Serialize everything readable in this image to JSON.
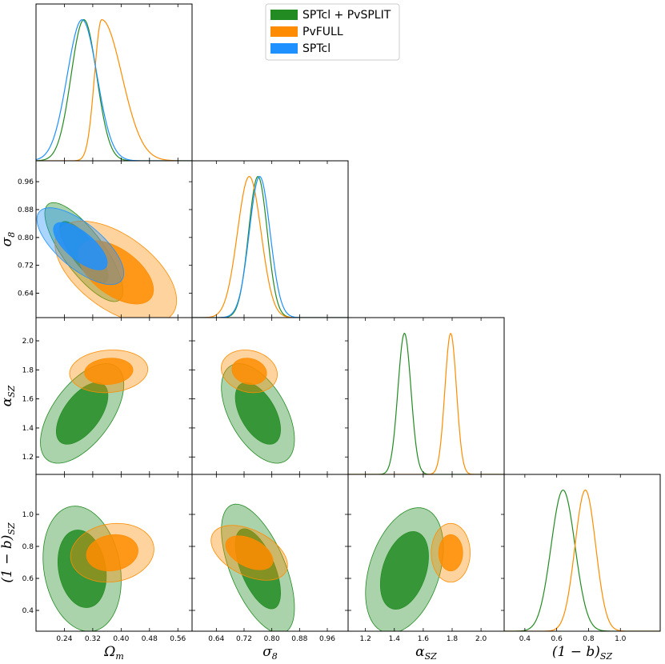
{
  "chart_data": {
    "type": "corner-plot",
    "title": "",
    "parameters": [
      {
        "key": "om",
        "name": "Ω",
        "sub": "m",
        "range": [
          0.16,
          0.6
        ],
        "ticks": [
          "0.24",
          "0.32",
          "0.40",
          "0.48",
          "0.56"
        ],
        "tickvals": [
          0.24,
          0.32,
          0.4,
          0.48,
          0.56
        ]
      },
      {
        "key": "s8",
        "name": "σ",
        "sub": "8",
        "range": [
          0.57,
          1.02
        ],
        "ticks": [
          "0.64",
          "0.72",
          "0.80",
          "0.88",
          "0.96"
        ],
        "tickvals": [
          0.64,
          0.72,
          0.8,
          0.88,
          0.96
        ]
      },
      {
        "key": "aSZ",
        "name": "α",
        "sub": "SZ",
        "range": [
          1.08,
          2.16
        ],
        "ticks": [
          "1.2",
          "1.4",
          "1.6",
          "1.8",
          "2.0"
        ],
        "tickvals": [
          1.2,
          1.4,
          1.6,
          1.8,
          2.0
        ]
      },
      {
        "key": "bSZ",
        "name": "(1 − b)",
        "sub": "SZ",
        "range": [
          0.27,
          1.25
        ],
        "ticks": [
          "0.4",
          "0.6",
          "0.8",
          "1.0"
        ],
        "tickvals": [
          0.4,
          0.6,
          0.8,
          1.0
        ]
      }
    ],
    "legend": {
      "position": "top-center",
      "entries": [
        {
          "label": "SPTcl + PvSPLIT",
          "color": "#228b22"
        },
        {
          "label": "PvFULL",
          "color": "#ff8c00"
        },
        {
          "label": "SPTcl",
          "color": "#1e90ff"
        }
      ]
    },
    "series": [
      {
        "name": "SPTcl + PvSPLIT",
        "color": "#228b22",
        "marginals": {
          "om": {
            "mean": 0.295,
            "sd": 0.036
          },
          "s8": {
            "mean": 0.76,
            "sd": 0.027
          },
          "aSZ": {
            "mean": 1.47,
            "sd": 0.045
          },
          "bSZ": {
            "mean": 0.64,
            "sd": 0.075
          }
        },
        "contours": [
          {
            "x": "om",
            "y": "s8",
            "mx": 0.295,
            "my": 0.758,
            "sx": 0.045,
            "sy": 0.058,
            "rho": -0.78
          },
          {
            "x": "om",
            "y": "aSZ",
            "mx": 0.29,
            "my": 1.5,
            "sx": 0.048,
            "sy": 0.14,
            "rho": 0.58
          },
          {
            "x": "s8",
            "y": "aSZ",
            "mx": 0.76,
            "my": 1.5,
            "sx": 0.043,
            "sy": 0.14,
            "rho": -0.52
          },
          {
            "x": "om",
            "y": "bSZ",
            "mx": 0.29,
            "my": 0.66,
            "sx": 0.045,
            "sy": 0.16,
            "rho": -0.18
          },
          {
            "x": "s8",
            "y": "bSZ",
            "mx": 0.76,
            "my": 0.66,
            "sx": 0.043,
            "sy": 0.165,
            "rho": -0.6
          },
          {
            "x": "aSZ",
            "y": "bSZ",
            "mx": 1.47,
            "my": 0.65,
            "sx": 0.11,
            "sy": 0.16,
            "rho": 0.36
          }
        ]
      },
      {
        "name": "PvFULL",
        "color": "#ff8c00",
        "marginals": {
          "om": {
            "mean": 0.345,
            "sd": 0.02
          },
          "s8": {
            "mean": 0.735,
            "sd": 0.034
          },
          "aSZ": {
            "mean": 1.79,
            "sd": 0.04
          },
          "bSZ": {
            "mean": 0.78,
            "sd": 0.065
          }
        },
        "contours": [
          {
            "x": "om",
            "y": "s8",
            "mx": 0.385,
            "my": 0.7,
            "sx": 0.07,
            "sy": 0.06,
            "rho": -0.55
          },
          {
            "x": "om",
            "y": "aSZ",
            "mx": 0.365,
            "my": 1.79,
            "sx": 0.045,
            "sy": 0.06,
            "rho": 0.1
          },
          {
            "x": "s8",
            "y": "aSZ",
            "mx": 0.735,
            "my": 1.79,
            "sx": 0.033,
            "sy": 0.06,
            "rho": -0.15
          },
          {
            "x": "om",
            "y": "bSZ",
            "mx": 0.375,
            "my": 0.76,
            "sx": 0.048,
            "sy": 0.075,
            "rho": 0.12
          },
          {
            "x": "s8",
            "y": "bSZ",
            "mx": 0.735,
            "my": 0.76,
            "sx": 0.045,
            "sy": 0.07,
            "rho": -0.45
          },
          {
            "x": "aSZ",
            "y": "bSZ",
            "mx": 1.79,
            "my": 0.76,
            "sx": 0.055,
            "sy": 0.075,
            "rho": 0.0
          }
        ]
      },
      {
        "name": "SPTcl",
        "color": "#1e90ff",
        "marginals": {
          "om": {
            "mean": 0.29,
            "sd": 0.042
          },
          "s8": {
            "mean": 0.765,
            "sd": 0.03
          }
        },
        "contours": [
          {
            "x": "om",
            "y": "s8",
            "mx": 0.285,
            "my": 0.775,
            "sx": 0.05,
            "sy": 0.045,
            "rho": -0.7
          }
        ]
      }
    ]
  }
}
